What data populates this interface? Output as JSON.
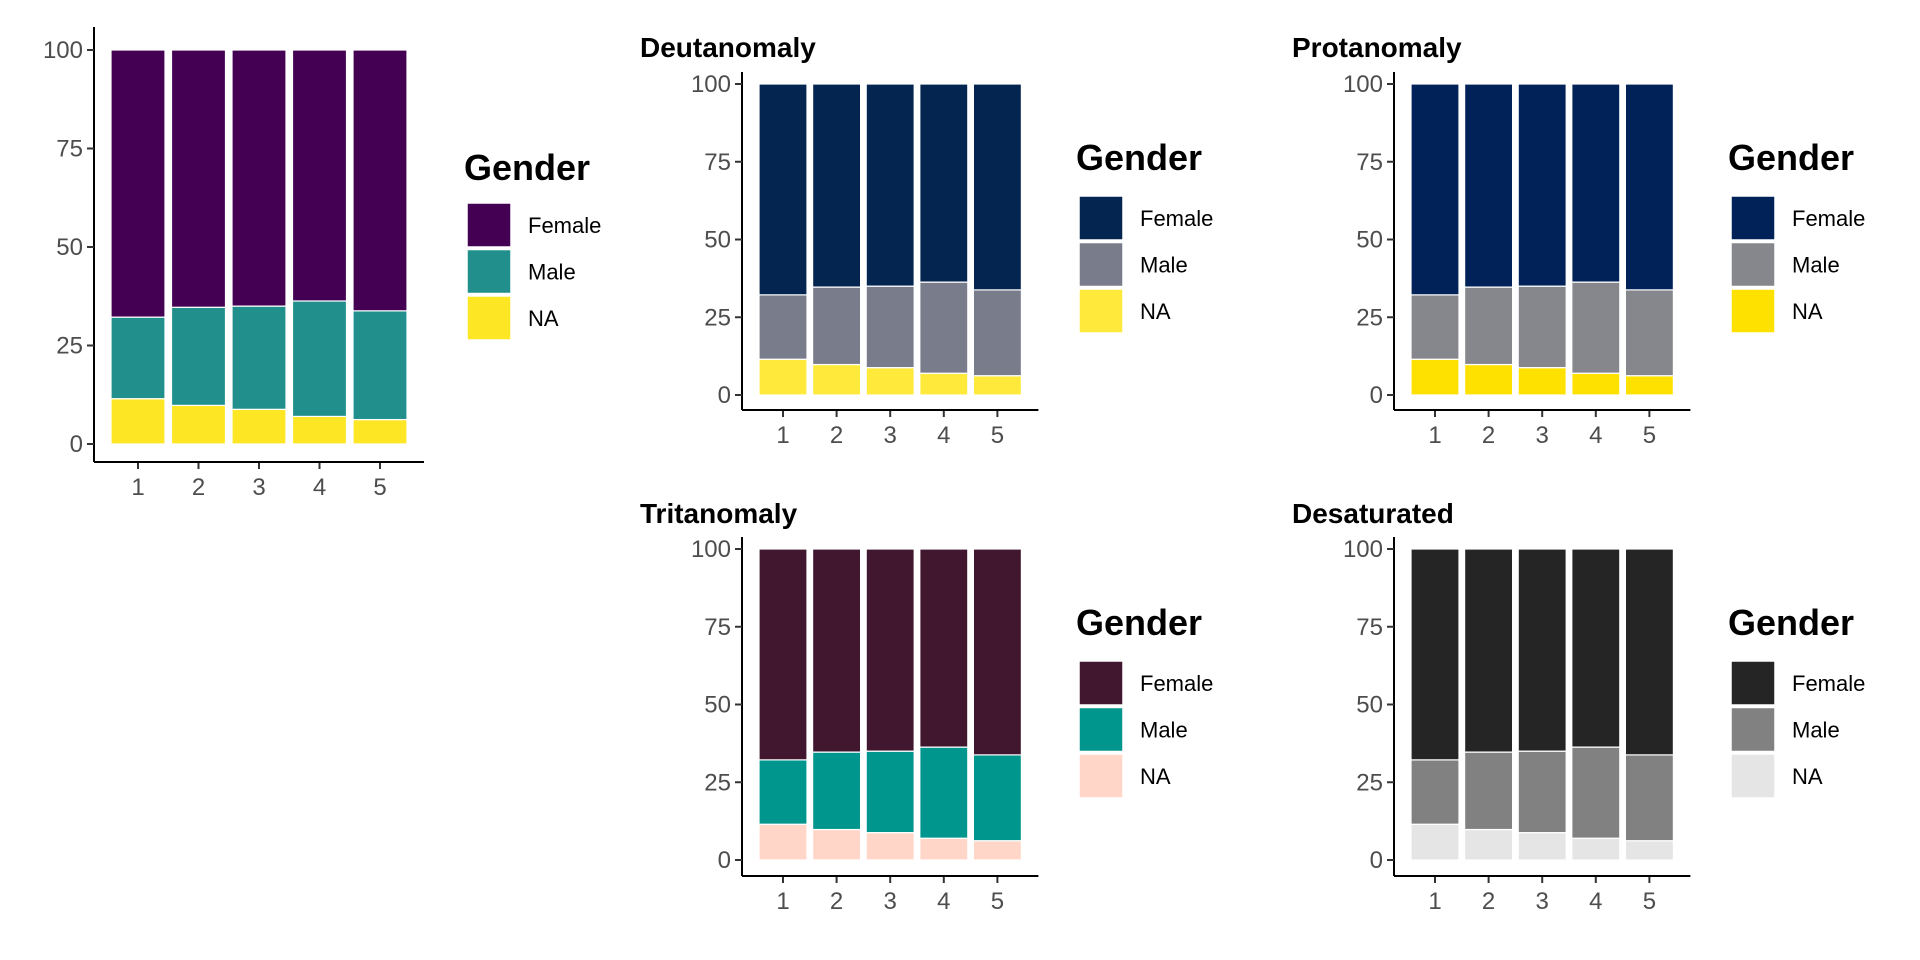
{
  "chart_data": [
    {
      "type": "bar",
      "stacked": true,
      "title": "",
      "categories": [
        "1",
        "2",
        "3",
        "4",
        "5"
      ],
      "series": [
        {
          "name": "NA",
          "color": "#FDE725",
          "values": [
            11.5,
            9.8,
            8.8,
            7.0,
            6.2
          ]
        },
        {
          "name": "Male",
          "color": "#21908C",
          "values": [
            20.7,
            24.9,
            26.2,
            29.3,
            27.6
          ]
        },
        {
          "name": "Female",
          "color": "#440154",
          "values": [
            67.8,
            65.3,
            65.0,
            63.7,
            66.2
          ]
        }
      ],
      "yticks": [
        0,
        25,
        50,
        75,
        100
      ],
      "ylim": [
        0,
        100
      ],
      "legend": {
        "title": "Gender",
        "position": "right",
        "entries": [
          "Female",
          "Male",
          "NA"
        ]
      }
    },
    {
      "type": "bar",
      "stacked": true,
      "title": "Deutanomaly",
      "categories": [
        "1",
        "2",
        "3",
        "4",
        "5"
      ],
      "series": [
        {
          "name": "NA",
          "color": "#FFE93A",
          "values": [
            11.5,
            9.8,
            8.8,
            7.0,
            6.2
          ]
        },
        {
          "name": "Male",
          "color": "#787C8B",
          "values": [
            20.7,
            24.9,
            26.2,
            29.3,
            27.6
          ]
        },
        {
          "name": "Female",
          "color": "#04254F",
          "values": [
            67.8,
            65.3,
            65.0,
            63.7,
            66.2
          ]
        }
      ],
      "yticks": [
        0,
        25,
        50,
        75,
        100
      ],
      "ylim": [
        0,
        100
      ],
      "legend": {
        "title": "Gender",
        "position": "right",
        "entries": [
          "Female",
          "Male",
          "NA"
        ]
      }
    },
    {
      "type": "bar",
      "stacked": true,
      "title": "Protanomaly",
      "categories": [
        "1",
        "2",
        "3",
        "4",
        "5"
      ],
      "series": [
        {
          "name": "NA",
          "color": "#FFE100",
          "values": [
            11.5,
            9.8,
            8.8,
            7.0,
            6.2
          ]
        },
        {
          "name": "Male",
          "color": "#86878C",
          "values": [
            20.7,
            24.9,
            26.2,
            29.3,
            27.6
          ]
        },
        {
          "name": "Female",
          "color": "#002258",
          "values": [
            67.8,
            65.3,
            65.0,
            63.7,
            66.2
          ]
        }
      ],
      "yticks": [
        0,
        25,
        50,
        75,
        100
      ],
      "ylim": [
        0,
        100
      ],
      "legend": {
        "title": "Gender",
        "position": "right",
        "entries": [
          "Female",
          "Male",
          "NA"
        ]
      }
    },
    {
      "type": "bar",
      "stacked": true,
      "title": "Tritanomaly",
      "categories": [
        "1",
        "2",
        "3",
        "4",
        "5"
      ],
      "series": [
        {
          "name": "NA",
          "color": "#FFD6C8",
          "values": [
            11.5,
            9.8,
            8.8,
            7.0,
            6.2
          ]
        },
        {
          "name": "Male",
          "color": "#00968E",
          "values": [
            20.7,
            24.9,
            26.2,
            29.3,
            27.6
          ]
        },
        {
          "name": "Female",
          "color": "#40172E",
          "values": [
            67.8,
            65.3,
            65.0,
            63.7,
            66.2
          ]
        }
      ],
      "yticks": [
        0,
        25,
        50,
        75,
        100
      ],
      "ylim": [
        0,
        100
      ],
      "legend": {
        "title": "Gender",
        "position": "right",
        "entries": [
          "Female",
          "Male",
          "NA"
        ]
      }
    },
    {
      "type": "bar",
      "stacked": true,
      "title": "Desaturated",
      "categories": [
        "1",
        "2",
        "3",
        "4",
        "5"
      ],
      "series": [
        {
          "name": "NA",
          "color": "#E5E5E5",
          "values": [
            11.5,
            9.8,
            8.8,
            7.0,
            6.2
          ]
        },
        {
          "name": "Male",
          "color": "#818181",
          "values": [
            20.7,
            24.9,
            26.2,
            29.3,
            27.6
          ]
        },
        {
          "name": "Female",
          "color": "#252525",
          "values": [
            67.8,
            65.3,
            65.0,
            63.7,
            66.2
          ]
        }
      ],
      "yticks": [
        0,
        25,
        50,
        75,
        100
      ],
      "ylim": [
        0,
        100
      ],
      "legend": {
        "title": "Gender",
        "position": "right",
        "entries": [
          "Female",
          "Male",
          "NA"
        ]
      }
    }
  ]
}
